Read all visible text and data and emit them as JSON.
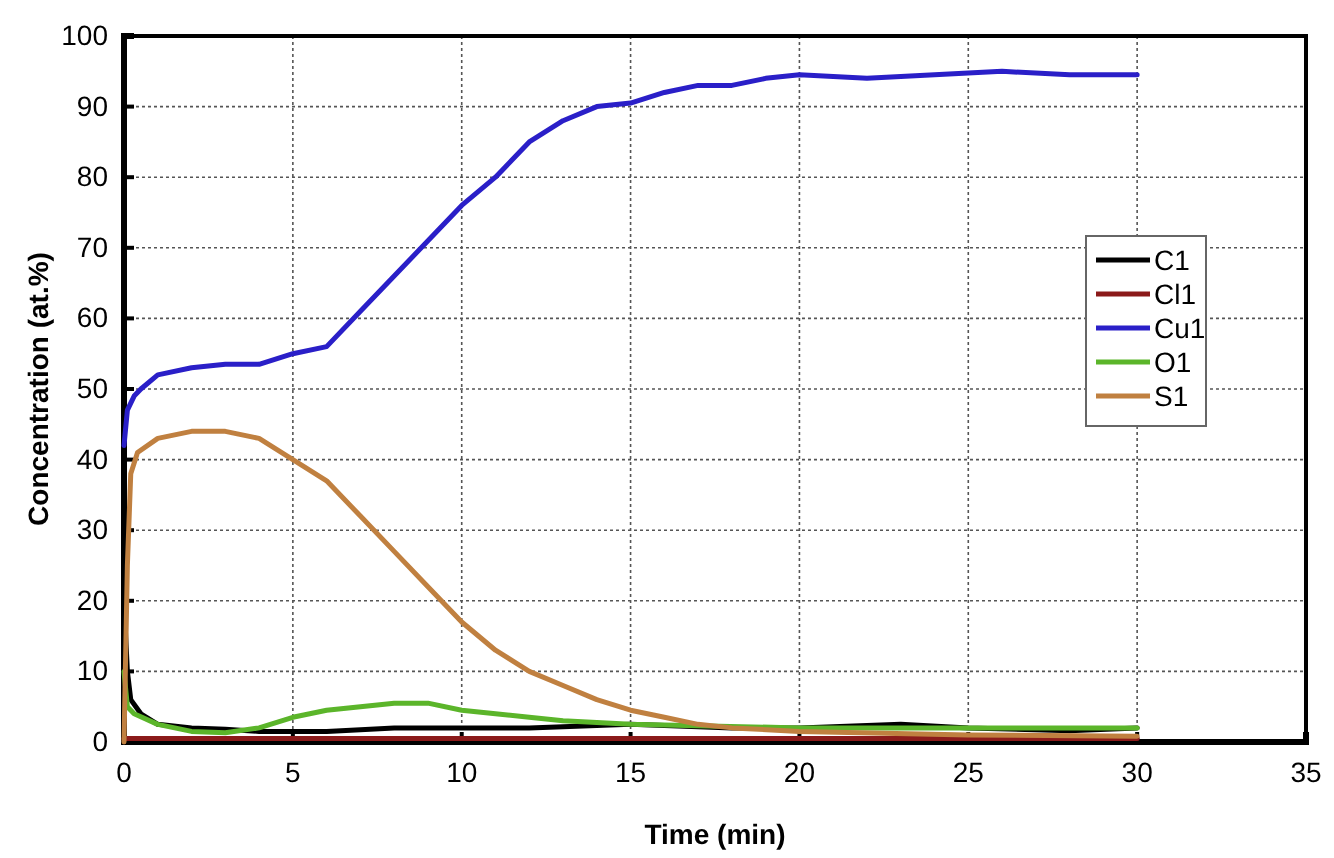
{
  "chart_data": {
    "type": "line",
    "xlabel": "Time (min)",
    "ylabel": "Concentration (at.%)",
    "xlim": [
      0,
      35
    ],
    "xticks": [
      0,
      5,
      10,
      15,
      20,
      25,
      30,
      35
    ],
    "ylim": [
      0,
      100
    ],
    "yticks": [
      0,
      10,
      20,
      30,
      40,
      50,
      60,
      70,
      80,
      90,
      100
    ],
    "grid": true,
    "legend": "right",
    "line_style": "solid",
    "marker": "none",
    "series": [
      {
        "name": "C1",
        "color": "#000000",
        "x": [
          0,
          0.1,
          0.2,
          0.5,
          1,
          2,
          3,
          4,
          6,
          8,
          10,
          12,
          15,
          18,
          20,
          23,
          25,
          28,
          30
        ],
        "values": [
          20,
          10,
          6,
          4,
          2.5,
          2,
          1.8,
          1.5,
          1.5,
          2,
          2,
          2,
          2.5,
          2,
          2,
          2.5,
          2,
          1.6,
          2
        ]
      },
      {
        "name": "Cl1",
        "color": "#8b1a1a",
        "x": [
          0,
          5,
          10,
          15,
          20,
          25,
          30
        ],
        "values": [
          0.5,
          0.5,
          0.5,
          0.5,
          0.5,
          0.5,
          0.5
        ]
      },
      {
        "name": "Cu1",
        "color": "#2a1fc8",
        "x": [
          0,
          0.1,
          0.3,
          0.5,
          1,
          2,
          3,
          4,
          5,
          6,
          7,
          8,
          9,
          10,
          11,
          12,
          13,
          14,
          15,
          16,
          17,
          18,
          19,
          20,
          22,
          24,
          26,
          28,
          30
        ],
        "values": [
          42,
          47,
          49,
          50,
          52,
          53,
          53.5,
          53.5,
          55,
          56,
          61,
          66,
          71,
          76,
          80,
          85,
          88,
          90,
          90.5,
          92,
          93,
          93,
          94,
          94.5,
          94,
          94.5,
          95,
          94.5,
          94.5
        ]
      },
      {
        "name": "O1",
        "color": "#5bb52a",
        "x": [
          0,
          0.1,
          0.3,
          1,
          2,
          3,
          4,
          5,
          6,
          7,
          8,
          9,
          10,
          11,
          12,
          13,
          15,
          20,
          25,
          30
        ],
        "values": [
          10,
          5,
          4,
          2.5,
          1.5,
          1.3,
          2,
          3.5,
          4.5,
          5,
          5.5,
          5.5,
          4.5,
          4,
          3.5,
          3,
          2.5,
          2,
          2,
          2
        ]
      },
      {
        "name": "S1",
        "color": "#c08040",
        "x": [
          0,
          0.1,
          0.2,
          0.4,
          1,
          2,
          3,
          4,
          5,
          6,
          7,
          8,
          9,
          10,
          11,
          12,
          13,
          14,
          15,
          16,
          17,
          18,
          20,
          25,
          30
        ],
        "values": [
          0,
          25,
          38,
          41,
          43,
          44,
          44,
          43,
          40,
          37,
          32,
          27,
          22,
          17,
          13,
          10,
          8,
          6,
          4.5,
          3.5,
          2.5,
          2,
          1.5,
          1,
          0.8
        ]
      }
    ]
  }
}
